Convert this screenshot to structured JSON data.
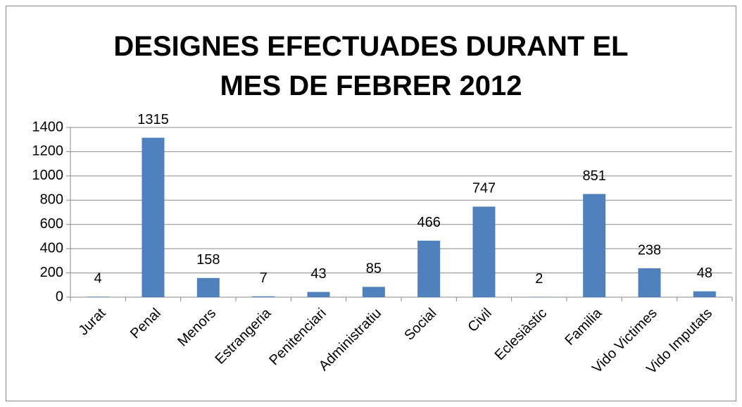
{
  "chart_data": {
    "type": "bar",
    "title": "DESIGNES EFECTUADES DURANT EL MES DE FEBRER 2012",
    "categories": [
      "Jurat",
      "Penal",
      "Menors",
      "Estrangeria",
      "Penitenciari",
      "Administratiu",
      "Social",
      "Civil",
      "Eclesiàstic",
      "Familia",
      "Vido Victimes",
      "Vido Imputats"
    ],
    "values": [
      4,
      1315,
      158,
      7,
      43,
      85,
      466,
      747,
      2,
      851,
      238,
      48
    ],
    "color": "#4f81bd",
    "ylim": [
      0,
      1400
    ],
    "yticks": [
      0,
      200,
      400,
      600,
      800,
      1000,
      1200,
      1400
    ],
    "grid": true
  }
}
